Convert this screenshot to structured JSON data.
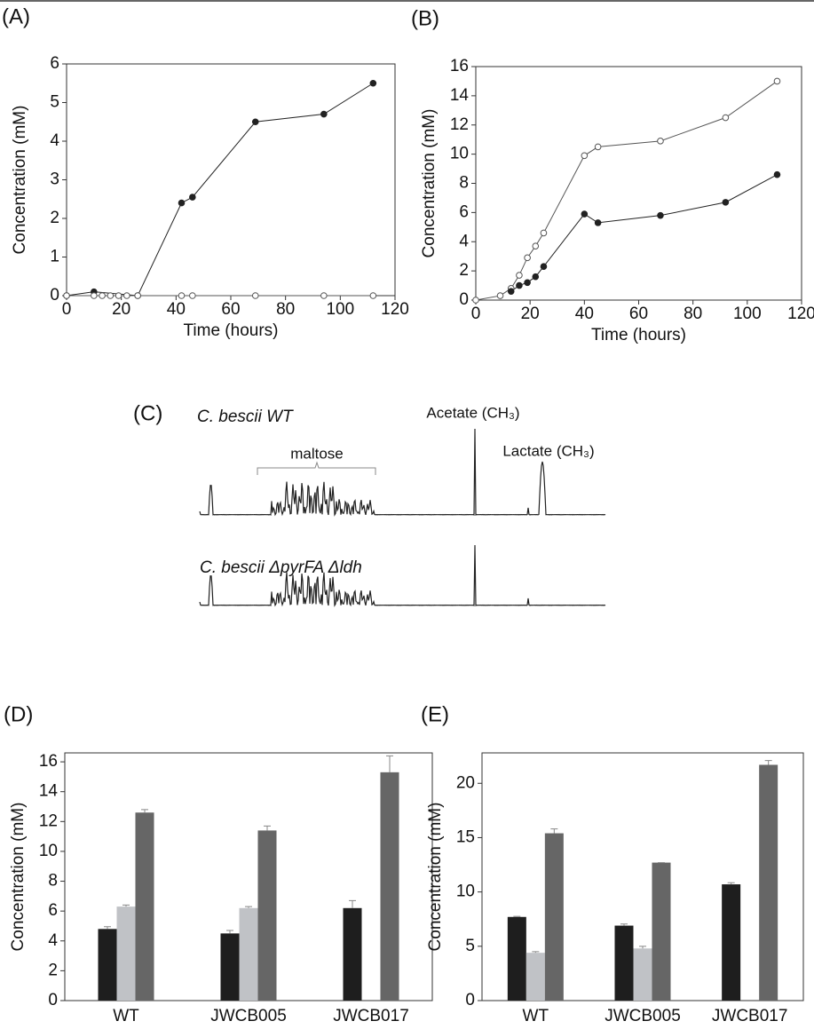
{
  "chart_data": [
    {
      "type": "line",
      "panel": "(A)",
      "xlabel": "Time (hours)",
      "ylabel": "Concentration (mM)",
      "xlim": [
        0,
        120
      ],
      "xticks": [
        0,
        20,
        40,
        60,
        80,
        100,
        120
      ],
      "ylim": [
        0,
        6
      ],
      "yticks": [
        0,
        1,
        2,
        3,
        4,
        5,
        6
      ],
      "series": [
        {
          "color": "#222222",
          "fill": "#222222",
          "x": [
            0,
            10,
            26,
            42,
            46,
            69,
            94,
            112
          ],
          "values": [
            0,
            0.1,
            0,
            2.4,
            2.55,
            4.5,
            4.7,
            5.5
          ]
        },
        {
          "color": "#555555",
          "fill": "#ffffff",
          "x": [
            0,
            10,
            13,
            16,
            19,
            22,
            26,
            42,
            46,
            69,
            94,
            112
          ],
          "values": [
            0,
            0,
            0,
            0,
            0,
            0,
            0,
            0,
            0,
            0,
            0,
            0
          ]
        }
      ]
    },
    {
      "type": "line",
      "panel": "(B)",
      "xlabel": "Time (hours)",
      "ylabel": "Concentration (mM)",
      "xlim": [
        0,
        120
      ],
      "xticks": [
        0,
        20,
        40,
        60,
        80,
        100,
        120
      ],
      "ylim": [
        0,
        16
      ],
      "yticks": [
        0,
        2,
        4,
        6,
        8,
        10,
        12,
        14,
        16
      ],
      "series": [
        {
          "color": "#555555",
          "fill": "#ffffff",
          "x": [
            0,
            9,
            13,
            16,
            19,
            22,
            25,
            40,
            45,
            68,
            92,
            111
          ],
          "values": [
            0,
            0.3,
            0.8,
            1.7,
            2.9,
            3.7,
            4.6,
            9.9,
            10.5,
            10.9,
            12.5,
            15
          ]
        },
        {
          "color": "#222222",
          "fill": "#222222",
          "x": [
            13,
            16,
            19,
            22,
            25,
            40,
            45,
            68,
            92,
            111
          ],
          "values": [
            0.6,
            1.0,
            1.2,
            1.6,
            2.3,
            5.9,
            5.3,
            5.8,
            6.7,
            8.6
          ]
        }
      ]
    },
    {
      "type": "spectrum",
      "panel": "(C)",
      "traces": [
        "C. bescii WT",
        "C. bescii ΔpyrFA Δldh"
      ],
      "annotations": [
        "maltose",
        "Acetate (CH₃)",
        "Lactate (CH₃)"
      ]
    },
    {
      "type": "bar",
      "panel": "(D)",
      "ylabel": "Concentration (mM)",
      "categories": [
        "WT",
        "JWCB005",
        "JWCB017"
      ],
      "ylim": [
        0,
        16.6
      ],
      "yticks": [
        0,
        2,
        4,
        6,
        8,
        10,
        12,
        14,
        16
      ],
      "series": [
        {
          "color": "#1e1e1e",
          "values": [
            4.8,
            4.5,
            6.2
          ],
          "errors": [
            0.15,
            0.2,
            0.5
          ]
        },
        {
          "color": "#c0c2c6",
          "values": [
            6.3,
            6.2,
            null
          ],
          "errors": [
            0.1,
            0.1,
            null
          ]
        },
        {
          "color": "#666666",
          "values": [
            12.6,
            11.4,
            15.3
          ],
          "errors": [
            0.2,
            0.3,
            1.1
          ]
        }
      ]
    },
    {
      "type": "bar",
      "panel": "(E)",
      "ylabel": "Concentration (mM)",
      "categories": [
        "WT",
        "JWCB005",
        "JWCB017"
      ],
      "ylim": [
        0,
        22.8
      ],
      "yticks": [
        0,
        5,
        10,
        15,
        20
      ],
      "series": [
        {
          "color": "#1e1e1e",
          "values": [
            7.7,
            6.9,
            10.7
          ],
          "errors": [
            0.05,
            0.15,
            0.15
          ]
        },
        {
          "color": "#c0c2c6",
          "values": [
            4.4,
            4.8,
            null
          ],
          "errors": [
            0.1,
            0.2,
            null
          ]
        },
        {
          "color": "#666666",
          "values": [
            15.4,
            12.7,
            21.7
          ],
          "errors": [
            0.4,
            0,
            0.4
          ]
        }
      ]
    }
  ]
}
